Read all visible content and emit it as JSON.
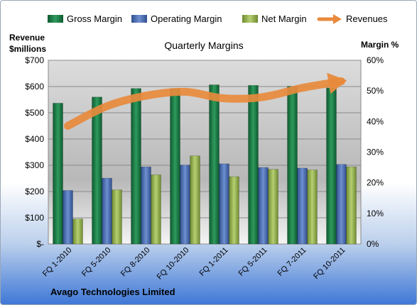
{
  "chart_data": {
    "type": "bar",
    "title": "Quarterly Margins",
    "footer": "Avago Technologies Limited",
    "left_axis_label_line1": "Revenue",
    "left_axis_label_line2": "$millions",
    "right_axis_label": "Margin %",
    "categories": [
      "FQ 1-2010",
      "FQ 5-2010",
      "FQ 8-2010",
      "FQ 10-2010",
      "FQ 1-2011",
      "FQ 5-2011",
      "FQ 7-2011",
      "FQ 10-2011"
    ],
    "left_ticks": [
      "$-",
      "$100",
      "$200",
      "$300",
      "$400",
      "$500",
      "$600",
      "$700"
    ],
    "right_ticks": [
      "0%",
      "10%",
      "20%",
      "30%",
      "40%",
      "50%",
      "60%"
    ],
    "ylim_left": [
      0,
      700
    ],
    "ylim_right": [
      0,
      60
    ],
    "grid": true,
    "legend_position": "top",
    "series": [
      {
        "name": "Gross Margin",
        "axis": "right",
        "kind": "bar",
        "color": "#1e7a46",
        "values": [
          46,
          48,
          50.8,
          50.8,
          52,
          51.8,
          51.5,
          51
        ]
      },
      {
        "name": "Operating Margin",
        "axis": "right",
        "kind": "bar",
        "color": "#4a6cb0",
        "values": [
          17.5,
          21.5,
          25.2,
          25.8,
          26.2,
          25,
          24.8,
          26
        ]
      },
      {
        "name": "Net Margin",
        "axis": "right",
        "kind": "bar",
        "color": "#92b04e",
        "values": [
          8.2,
          17.7,
          22.6,
          28.8,
          22,
          24.4,
          24.2,
          25.2
        ]
      },
      {
        "name": "Revenues",
        "axis": "left",
        "kind": "line",
        "color": "#e88a3c",
        "values": [
          450,
          525,
          565,
          580,
          555,
          560,
          595,
          620
        ]
      }
    ]
  }
}
